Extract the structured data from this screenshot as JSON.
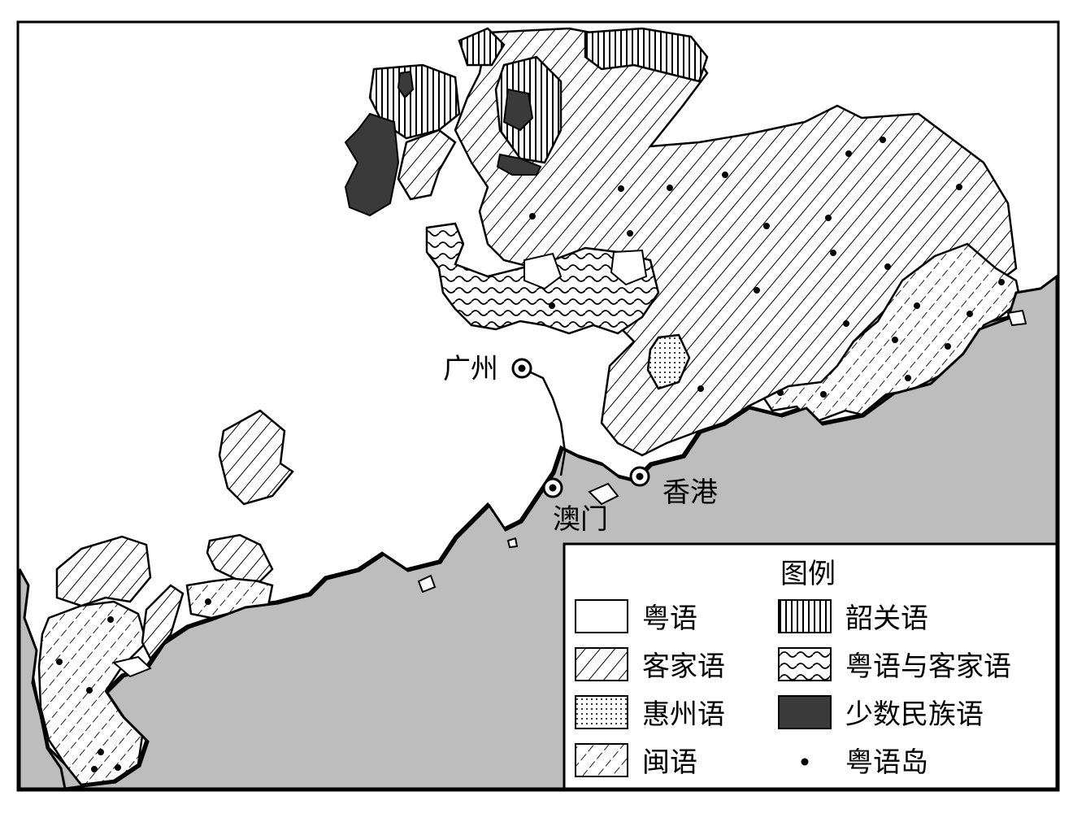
{
  "map": {
    "cities": [
      {
        "id": "guangzhou",
        "label": "广州"
      },
      {
        "id": "macau",
        "label": "澳门"
      },
      {
        "id": "hongkong",
        "label": "香港"
      }
    ]
  },
  "legend": {
    "title": "图例",
    "items": [
      {
        "id": "yue",
        "label": "粤语"
      },
      {
        "id": "kejia",
        "label": "客家语"
      },
      {
        "id": "huizhou",
        "label": "惠州语"
      },
      {
        "id": "min",
        "label": "闽语"
      },
      {
        "id": "shaoguan",
        "label": "韶关语"
      },
      {
        "id": "yue-kejia",
        "label": "粤语与客家语"
      },
      {
        "id": "minority",
        "label": "少数民族语"
      },
      {
        "id": "yue-island",
        "label": "粤语岛"
      }
    ]
  },
  "colors": {
    "sea": "#bdbdbd",
    "land": "#ffffff",
    "outline": "#000000",
    "minority_fill": "#3a3a3a"
  }
}
